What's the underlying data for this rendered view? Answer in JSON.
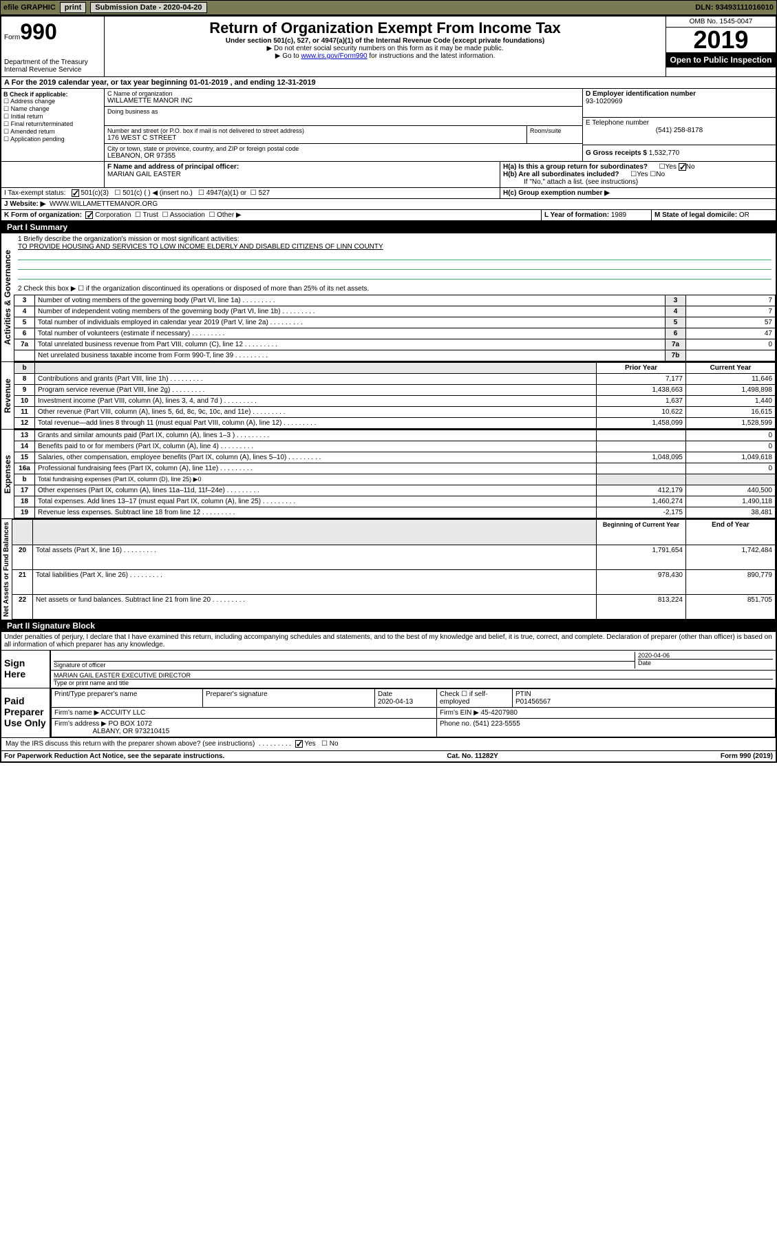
{
  "topbar": {
    "efile": "efile GRAPHIC",
    "print": "print",
    "subdate_label": "Submission Date - 2020-04-20",
    "dln": "DLN: 93493111016010"
  },
  "header": {
    "form_label": "Form",
    "form_num": "990",
    "dept": "Department of the Treasury",
    "irs": "Internal Revenue Service",
    "title": "Return of Organization Exempt From Income Tax",
    "sub1": "Under section 501(c), 527, or 4947(a)(1) of the Internal Revenue Code (except private foundations)",
    "sub2": "▶ Do not enter social security numbers on this form as it may be made public.",
    "sub3": "▶ Go to www.irs.gov/Form990 for instructions and the latest information.",
    "omb": "OMB No. 1545-0047",
    "year": "2019",
    "inspection": "Open to Public Inspection"
  },
  "sectionA": {
    "text": "A For the 2019 calendar year, or tax year beginning 01-01-2019    , and ending 12-31-2019"
  },
  "sectionB": {
    "label": "B Check if applicable:",
    "addr": "Address change",
    "name": "Name change",
    "initial": "Initial return",
    "final": "Final return/terminated",
    "amended": "Amended return",
    "app": "Application pending"
  },
  "sectionC": {
    "name_label": "C Name of organization",
    "name": "WILLAMETTE MANOR INC",
    "dba_label": "Doing business as",
    "street_label": "Number and street (or P.O. box if mail is not delivered to street address)",
    "room_label": "Room/suite",
    "street": "176 WEST C STREET",
    "city_label": "City or town, state or province, country, and ZIP or foreign postal code",
    "city": "LEBANON, OR  97355"
  },
  "sectionD": {
    "label": "D Employer identification number",
    "ein": "93-1020969"
  },
  "sectionE": {
    "label": "E Telephone number",
    "phone": "(541) 258-8178"
  },
  "sectionG": {
    "label": "G Gross receipts $",
    "amount": "1,532,770"
  },
  "sectionF": {
    "label": "F Name and address of principal officer:",
    "name": "MARIAN GAIL EASTER"
  },
  "sectionH": {
    "ha": "H(a)  Is this a group return for subordinates?",
    "hb": "H(b)  Are all subordinates included?",
    "hb_note": "If \"No,\" attach a list. (see instructions)",
    "hc": "H(c)  Group exemption number ▶",
    "yes": "Yes",
    "no": "No"
  },
  "sectionI": {
    "label": "I   Tax-exempt status:",
    "c3": "501(c)(3)",
    "c": "501(c) (   ) ◀ (insert no.)",
    "a1": "4947(a)(1) or",
    "s527": "527"
  },
  "sectionJ": {
    "label": "J   Website: ▶",
    "url": "WWW.WILLAMETTEMANOR.ORG"
  },
  "sectionK": {
    "label": "K Form of organization:",
    "corp": "Corporation",
    "trust": "Trust",
    "assoc": "Association",
    "other": "Other ▶"
  },
  "sectionL": {
    "label": "L Year of formation:",
    "year": "1989"
  },
  "sectionM": {
    "label": "M State of legal domicile:",
    "state": "OR"
  },
  "part1": {
    "title": "Part I      Summary",
    "vert_gov": "Activities & Governance",
    "vert_rev": "Revenue",
    "vert_exp": "Expenses",
    "vert_net": "Net Assets or Fund Balances",
    "l1": "1   Briefly describe the organization's mission or most significant activities:",
    "mission": "TO PROVIDE HOUSING AND SERVICES TO LOW INCOME ELDERLY AND DISABLED CITIZENS OF LINN COUNTY",
    "l2": "2   Check this box ▶ ☐  if the organization discontinued its operations or disposed of more than 25% of its net assets.",
    "lines": [
      {
        "n": "3",
        "t": "Number of voting members of the governing body (Part VI, line 1a)",
        "k": "3",
        "v": "7"
      },
      {
        "n": "4",
        "t": "Number of independent voting members of the governing body (Part VI, line 1b)",
        "k": "4",
        "v": "7"
      },
      {
        "n": "5",
        "t": "Total number of individuals employed in calendar year 2019 (Part V, line 2a)",
        "k": "5",
        "v": "57"
      },
      {
        "n": "6",
        "t": "Total number of volunteers (estimate if necessary)",
        "k": "6",
        "v": "47"
      },
      {
        "n": "7a",
        "t": "Total unrelated business revenue from Part VIII, column (C), line 12",
        "k": "7a",
        "v": "0"
      },
      {
        "n": "",
        "t": "Net unrelated business taxable income from Form 990-T, line 39",
        "k": "7b",
        "v": ""
      }
    ],
    "col_prior": "Prior Year",
    "col_current": "Current Year",
    "rev": [
      {
        "n": "8",
        "t": "Contributions and grants (Part VIII, line 1h)",
        "p": "7,177",
        "c": "11,646"
      },
      {
        "n": "9",
        "t": "Program service revenue (Part VIII, line 2g)",
        "p": "1,438,663",
        "c": "1,498,898"
      },
      {
        "n": "10",
        "t": "Investment income (Part VIII, column (A), lines 3, 4, and 7d )",
        "p": "1,637",
        "c": "1,440"
      },
      {
        "n": "11",
        "t": "Other revenue (Part VIII, column (A), lines 5, 6d, 8c, 9c, 10c, and 11e)",
        "p": "10,622",
        "c": "16,615"
      },
      {
        "n": "12",
        "t": "Total revenue—add lines 8 through 11 (must equal Part VIII, column (A), line 12)",
        "p": "1,458,099",
        "c": "1,528,599"
      }
    ],
    "exp": [
      {
        "n": "13",
        "t": "Grants and similar amounts paid (Part IX, column (A), lines 1–3 )",
        "p": "",
        "c": "0"
      },
      {
        "n": "14",
        "t": "Benefits paid to or for members (Part IX, column (A), line 4)",
        "p": "",
        "c": "0"
      },
      {
        "n": "15",
        "t": "Salaries, other compensation, employee benefits (Part IX, column (A), lines 5–10)",
        "p": "1,048,095",
        "c": "1,049,618"
      },
      {
        "n": "16a",
        "t": "Professional fundraising fees (Part IX, column (A), line 11e)",
        "p": "",
        "c": "0"
      },
      {
        "n": "b",
        "t": "Total fundraising expenses (Part IX, column (D), line 25) ▶0",
        "p": "__NOCELL__",
        "c": "__NOCELL__"
      },
      {
        "n": "17",
        "t": "Other expenses (Part IX, column (A), lines 11a–11d, 11f–24e)",
        "p": "412,179",
        "c": "440,500"
      },
      {
        "n": "18",
        "t": "Total expenses. Add lines 13–17 (must equal Part IX, column (A), line 25)",
        "p": "1,460,274",
        "c": "1,490,118"
      },
      {
        "n": "19",
        "t": "Revenue less expenses. Subtract line 18 from line 12",
        "p": "-2,175",
        "c": "38,481"
      }
    ],
    "col_begin": "Beginning of Current Year",
    "col_end": "End of Year",
    "net": [
      {
        "n": "20",
        "t": "Total assets (Part X, line 16)",
        "p": "1,791,654",
        "c": "1,742,484"
      },
      {
        "n": "21",
        "t": "Total liabilities (Part X, line 26)",
        "p": "978,430",
        "c": "890,779"
      },
      {
        "n": "22",
        "t": "Net assets or fund balances. Subtract line 21 from line 20",
        "p": "813,224",
        "c": "851,705"
      }
    ]
  },
  "part2": {
    "title": "Part II     Signature Block",
    "perjury": "Under penalties of perjury, I declare that I have examined this return, including accompanying schedules and statements, and to the best of my knowledge and belief, it is true, correct, and complete. Declaration of preparer (other than officer) is based on all information of which preparer has any knowledge.",
    "sign_here": "Sign Here",
    "sig_officer": "Signature of officer",
    "sig_date": "2020-04-06",
    "date_label": "Date",
    "officer_name": "MARIAN GAIL EASTER  EXECUTIVE DIRECTOR",
    "type_name": "Type or print name and title",
    "paid": "Paid Preparer Use Only",
    "prep_name_label": "Print/Type preparer's name",
    "prep_sig_label": "Preparer's signature",
    "prep_date": "2020-04-13",
    "check_self": "Check ☐ if self-employed",
    "ptin_label": "PTIN",
    "ptin": "P01456567",
    "firm_name_label": "Firm's name    ▶",
    "firm_name": "ACCUITY LLC",
    "firm_ein_label": "Firm's EIN ▶",
    "firm_ein": "45-4207980",
    "firm_addr_label": "Firm's address ▶",
    "firm_addr": "PO BOX 1072",
    "firm_city": "ALBANY, OR   973210415",
    "phone_label": "Phone no.",
    "phone": "(541) 223-5555",
    "discuss": "May the IRS discuss this return with the preparer shown above? (see instructions)",
    "yes": "Yes",
    "no": "No"
  },
  "footer": {
    "paperwork": "For Paperwork Reduction Act Notice, see the separate instructions.",
    "cat": "Cat. No. 11282Y",
    "form": "Form 990 (2019)"
  }
}
